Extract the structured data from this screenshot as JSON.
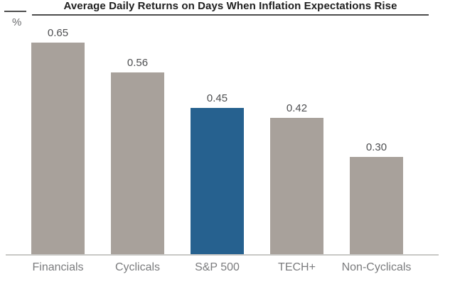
{
  "header": {
    "title": "Average Daily Returns on Days When Inflation Expectations Rise",
    "unit_label": "%"
  },
  "chart_data": {
    "type": "bar",
    "title": "Average Daily Returns on Days When Inflation Expectations Rise",
    "categories": [
      "Financials",
      "Cyclicals",
      "S&P 500",
      "TECH+",
      "Non-Cyclicals"
    ],
    "values": [
      0.65,
      0.56,
      0.45,
      0.42,
      0.3
    ],
    "value_labels": [
      "0.65",
      "0.56",
      "0.45",
      "0.42",
      "0.30"
    ],
    "xlabel": "",
    "ylabel": "%",
    "ylim": [
      0,
      0.7
    ],
    "grid": false,
    "legend_position": "none",
    "highlight_index": 2,
    "colors": {
      "bar_default": "#a8a19b",
      "bar_highlight": "#26618f",
      "value_label": "#4d4e50",
      "category_label": "#7b7c7e",
      "axis_line": "#c9c8c6",
      "title_text": "#1f1f1f",
      "title_rule": "#4d4d4d"
    }
  }
}
